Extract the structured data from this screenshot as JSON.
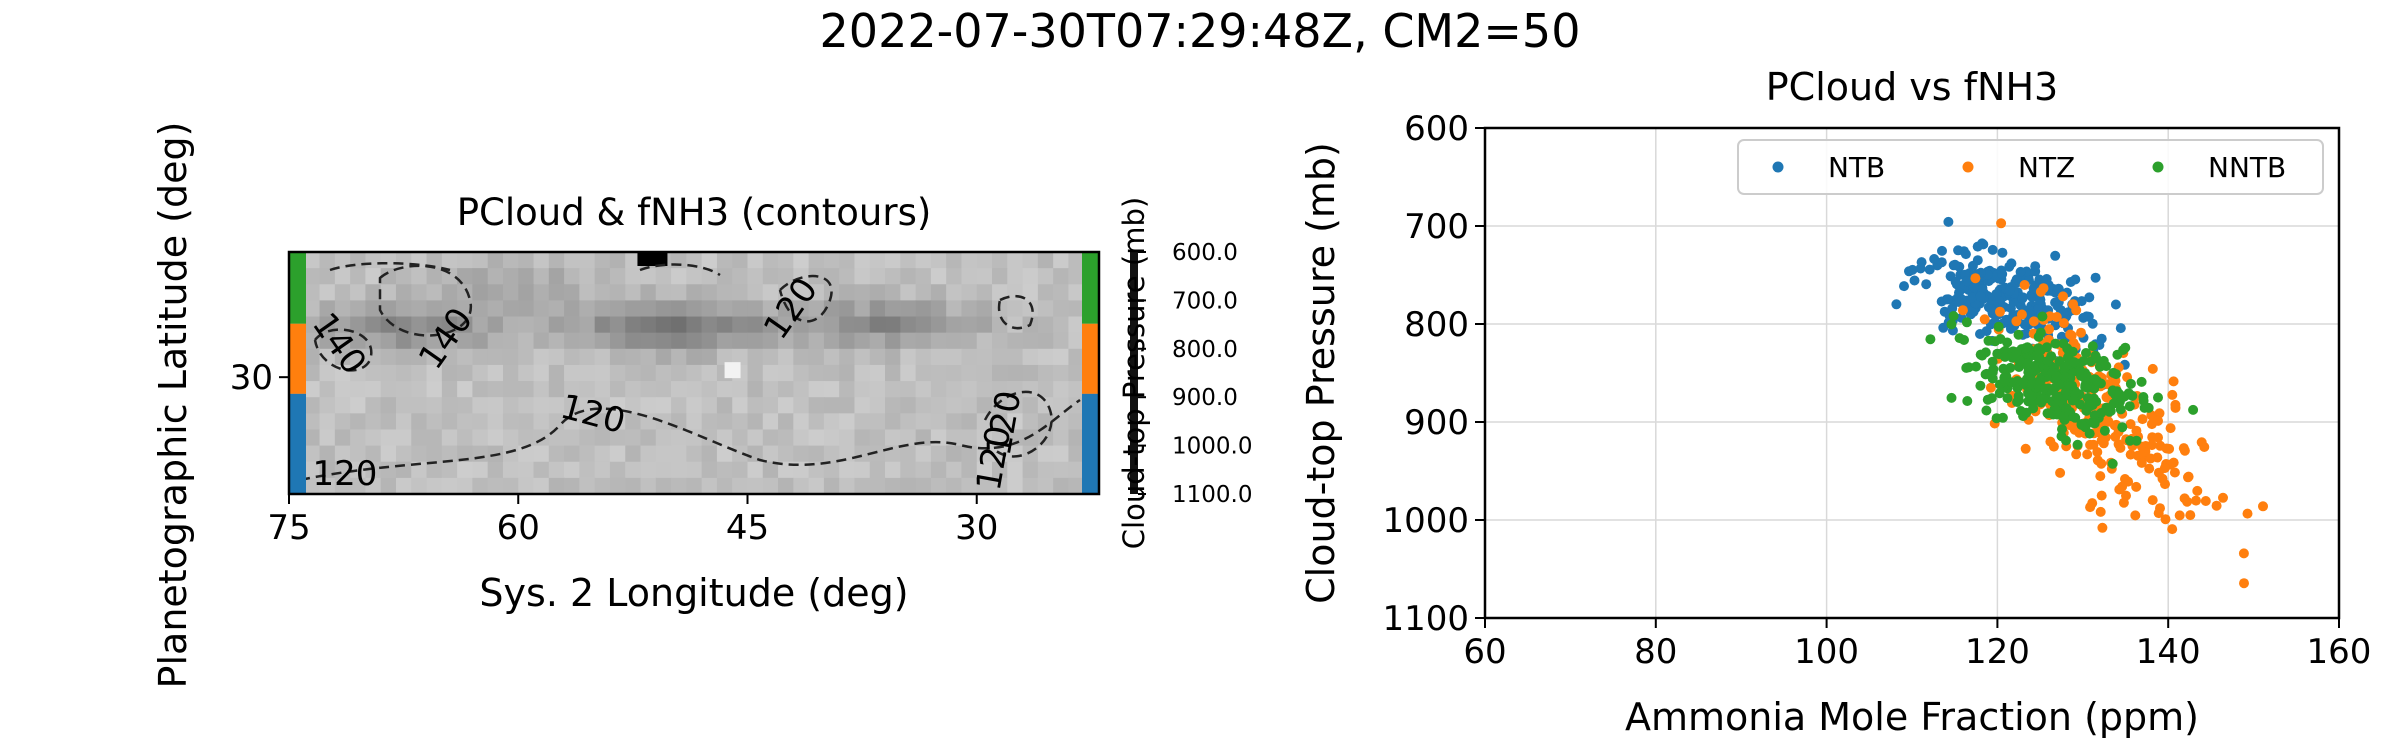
{
  "figure": {
    "suptitle": "2022-07-30T07:29:48Z, CM2=50"
  },
  "chart_data": [
    {
      "type": "heatmap",
      "title": "PCloud & fNH3 (contours)",
      "xlabel": "Sys. 2 Longitude (deg)",
      "ylabel": "Planetographic Latitude (deg)",
      "xlim": [
        75,
        22
      ],
      "ylim": [
        23,
        37.5
      ],
      "x_ticks": [
        75,
        60,
        45,
        30
      ],
      "x_tick_labels": [
        "75",
        "60",
        "45",
        "30"
      ],
      "y_ticks": [
        30
      ],
      "y_tick_labels": [
        "30"
      ],
      "colormap": "gray",
      "colorbar": {
        "label": "Cloud-top Pressure (mb)",
        "ticks": [
          600,
          700,
          800,
          900,
          1000,
          1100
        ],
        "tick_labels": [
          "600.0",
          "700.0",
          "800.0",
          "900.0",
          "1000.0",
          "1100.0"
        ]
      },
      "contour_labels": [
        "140",
        "140",
        "120",
        "120",
        "120",
        "120",
        "120"
      ],
      "band_colors": {
        "NNTB": "#2ca02c",
        "NTZ": "#ff7f0e",
        "NTB": "#1f77b4"
      },
      "bands": [
        {
          "name": "NNTB",
          "lat_range": [
            33.2,
            37.5
          ]
        },
        {
          "name": "NTZ",
          "lat_range": [
            29.0,
            33.2
          ]
        },
        {
          "name": "NTB",
          "lat_range": [
            23.0,
            29.0
          ]
        }
      ],
      "dark_features": [
        {
          "lon": 67,
          "lat": 33.0,
          "strength": 0.6
        },
        {
          "lon": 50,
          "lat": 33.0,
          "strength": 0.8
        },
        {
          "lon": 36,
          "lat": 33.2,
          "strength": 0.6
        },
        {
          "lon": 60,
          "lat": 35.5,
          "strength": 0.25
        }
      ]
    },
    {
      "type": "scatter",
      "title": "PCloud vs fNH3",
      "xlabel": "Ammonia Mole Fraction (ppm)",
      "ylabel": "Cloud-top Pressure (mb)",
      "xlim": [
        60,
        160
      ],
      "ylim": [
        1100,
        600
      ],
      "x_ticks": [
        60,
        80,
        100,
        120,
        140,
        160
      ],
      "y_ticks": [
        600,
        700,
        800,
        900,
        1000,
        1100
      ],
      "grid": true,
      "legend_position": "upper-right",
      "series": [
        {
          "name": "NTB",
          "color": "#1f77b4",
          "n": 260,
          "x_center": 121,
          "x_sd": 4.8,
          "y_center": 772,
          "y_sd": 24,
          "corr": 0.45,
          "seed": 11
        },
        {
          "name": "NTZ",
          "color": "#ff7f0e",
          "n": 260,
          "x_center": 132,
          "x_sd": 6.5,
          "y_center": 895,
          "y_sd": 55,
          "corr": 0.72,
          "seed": 29
        },
        {
          "name": "NNTB",
          "color": "#2ca02c",
          "n": 300,
          "x_center": 127,
          "x_sd": 5.0,
          "y_center": 858,
          "y_sd": 26,
          "corr": 0.4,
          "seed": 47
        }
      ]
    }
  ]
}
